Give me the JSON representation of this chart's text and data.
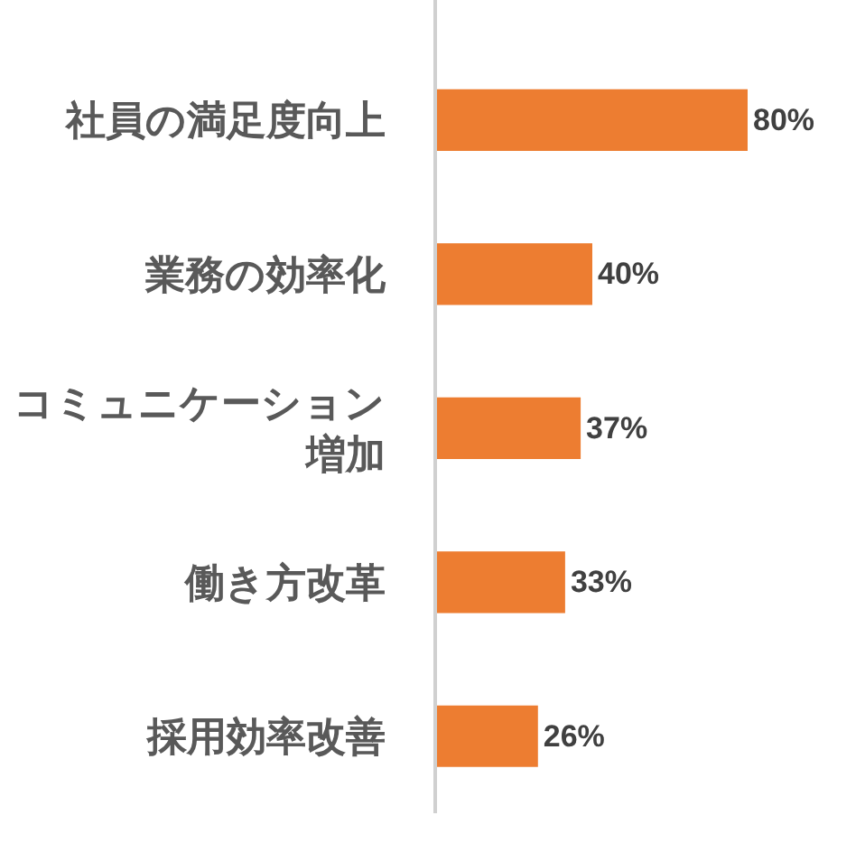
{
  "chart_data": {
    "type": "bar",
    "orientation": "horizontal",
    "categories": [
      "社員の満足度向上",
      "業務の効率化",
      "コミュニケーション増加",
      "働き方改革",
      "採用効率改善"
    ],
    "values": [
      80,
      40,
      37,
      33,
      26
    ],
    "value_labels": [
      "80%",
      "40%",
      "37%",
      "33%",
      "26%"
    ],
    "color": "#ed7d31"
  }
}
